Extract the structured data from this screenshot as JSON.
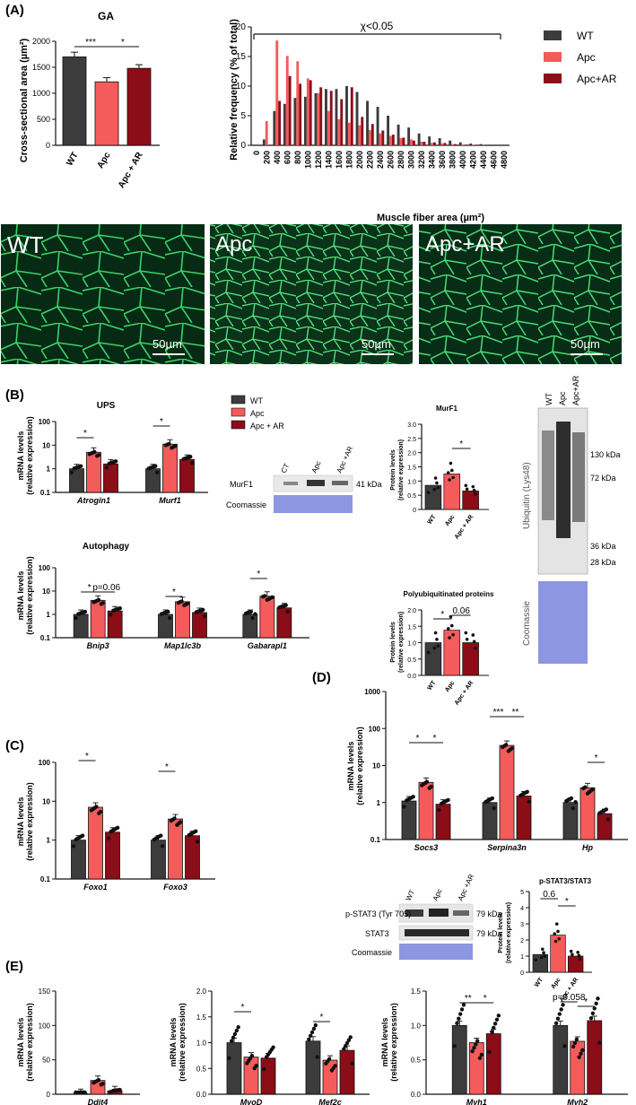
{
  "colors": {
    "wt": "#3c3c3c",
    "apc": "#f45b5b",
    "apcar": "#8b0d17",
    "axis": "#111111"
  },
  "panels": {
    "A": "(A)",
    "B": "(B)",
    "C": "(C)",
    "D": "(D)",
    "E": "(E)"
  },
  "legend": {
    "wt": "WT",
    "apc": "Apc",
    "apcar": "Apc + AR",
    "apcar_compact": "Apc+AR"
  },
  "panelA": {
    "ga_title": "GA",
    "ga_ylabel": "Cross-sectional area (µm²)",
    "ga_chart": {
      "type": "bar",
      "categories": [
        "WT",
        "Apc",
        "Apc + AR"
      ],
      "values": [
        1700,
        1220,
        1480
      ],
      "errors": [
        90,
        80,
        70
      ],
      "ylim": [
        0,
        2000
      ],
      "yticks": [
        0,
        500,
        1000,
        1500,
        2000
      ],
      "sig": [
        {
          "from": 0,
          "to": 1,
          "label": "***"
        },
        {
          "from": 1,
          "to": 2,
          "label": "*"
        }
      ]
    },
    "hist_ylabel": "Relative frequency (% of total)",
    "hist_xlabel": "Muscle fiber area (µm²)",
    "hist_annotation": "χ<0.05",
    "hist_chart": {
      "type": "bar",
      "categories": [
        "0",
        "200",
        "400",
        "600",
        "800",
        "1000",
        "1200",
        "1400",
        "1600",
        "1800",
        "2000",
        "2200",
        "2400",
        "2600",
        "2800",
        "3000",
        "3200",
        "3400",
        "3600",
        "3800",
        "4000",
        "4200",
        "4400",
        "4600",
        "4800"
      ],
      "yticks": [
        0,
        5,
        10,
        15,
        20
      ],
      "ylim": [
        0,
        20
      ],
      "series": [
        {
          "name": "WT",
          "values": [
            0,
            1.0,
            5.8,
            7.0,
            8.0,
            8.2,
            8.8,
            9.5,
            9.5,
            10.0,
            9.0,
            7.5,
            6.5,
            5.0,
            3.5,
            3.0,
            2.0,
            1.5,
            1.2,
            0.8,
            0.5,
            0.3,
            0.2,
            0.1,
            0
          ]
        },
        {
          "name": "Apc",
          "values": [
            0,
            4.1,
            17.7,
            15.1,
            14.2,
            11.3,
            8.8,
            5.8,
            4.4,
            3.8,
            3.4,
            2.6,
            2.0,
            1.6,
            1.2,
            1.0,
            0.6,
            0.4,
            0.3,
            0.2,
            0.1,
            0.1,
            0.05,
            0,
            0
          ]
        },
        {
          "name": "Apc+AR",
          "values": [
            0,
            0,
            7.5,
            11.7,
            10.4,
            11.0,
            9.8,
            9.2,
            7.8,
            9.8,
            4.8,
            3.6,
            2.5,
            1.8,
            1.3,
            0.8,
            0.6,
            0.5,
            0.4,
            0.2,
            0.1,
            0.05,
            0,
            0,
            0
          ]
        }
      ]
    },
    "micro_labels": [
      "WT",
      "Apc",
      "Apc+AR"
    ],
    "scale_bar": "50µm"
  },
  "panelB": {
    "ups_title": "UPS",
    "autophagy_title": "Autophagy",
    "ylabel_1": "mRNA levels",
    "ylabel_2": "(relative expression)",
    "log_ticks": [
      "0.1",
      "1",
      "10",
      "100"
    ],
    "ups_chart": {
      "type": "bar",
      "categories": [
        "Atrogin1",
        "Murf1"
      ],
      "series": [
        {
          "name": "WT",
          "values": [
            1.0,
            1.0
          ]
        },
        {
          "name": "Apc",
          "values": [
            5.0,
            11.0
          ]
        },
        {
          "name": "Apc + AR",
          "values": [
            1.6,
            2.5
          ]
        }
      ],
      "sig": [
        {
          "cat": 0,
          "label": "*"
        },
        {
          "cat": 1,
          "label": "*"
        }
      ]
    },
    "autophagy_chart": {
      "type": "bar",
      "categories": [
        "Bnip3",
        "Map1lc3b",
        "Gabarapl1"
      ],
      "series": [
        {
          "name": "WT",
          "values": [
            1.0,
            1.0,
            1.0
          ]
        },
        {
          "name": "Apc",
          "values": [
            4.0,
            3.5,
            6.0
          ]
        },
        {
          "name": "Apc + AR",
          "values": [
            1.4,
            1.2,
            1.9
          ]
        }
      ],
      "p_label": "p=0.06"
    },
    "blot": {
      "lanes": [
        "CT",
        "Apc",
        "Apc +AR"
      ],
      "murf1": "MurF1",
      "murf1_kda": "41 kDa",
      "coomassie": "Coomassie"
    },
    "murf1_chart": {
      "type": "bar",
      "title": "MurF1",
      "ylabel_1": "Protein levels",
      "ylabel_2": "(relative expression)",
      "categories": [
        "WT",
        "Apc",
        "Apc + AR"
      ],
      "values": [
        0.85,
        1.25,
        0.65
      ],
      "yticks": [
        "0",
        "0.5",
        "1.0",
        "1.5",
        "2.0",
        "2.5",
        "3.0"
      ],
      "ylim": [
        0,
        3
      ]
    },
    "polyub_chart": {
      "type": "bar",
      "title": "Polyubiquitinated proteins",
      "ylabel_1": "Protein levels",
      "ylabel_2": "(relative expression)",
      "categories": [
        "WT",
        "Apc",
        "Apc + AR"
      ],
      "values": [
        1.0,
        1.38,
        1.0
      ],
      "yticks": [
        "0.0",
        "0.5",
        "1.0",
        "1.5",
        "2.0"
      ],
      "ylim": [
        0,
        2
      ],
      "p_label": "0.06"
    },
    "ubiquitin_blot": {
      "lanes": [
        "WT",
        "Apc",
        "Apc+AR"
      ],
      "label": "Ubiquitin (Lys48)",
      "coomassie": "Coomassie",
      "kda": [
        "130 kDa",
        "72 kDa",
        "36 kDa",
        "28 kDa"
      ]
    }
  },
  "panelC": {
    "chart": {
      "type": "bar",
      "categories": [
        "Foxo1",
        "Foxo3"
      ],
      "series": [
        {
          "name": "WT",
          "values": [
            1.0,
            1.0
          ]
        },
        {
          "name": "Apc",
          "values": [
            7.0,
            3.5
          ]
        },
        {
          "name": "Apc + AR",
          "values": [
            1.6,
            1.3
          ]
        }
      ]
    }
  },
  "panelD": {
    "chart": {
      "type": "bar",
      "categories": [
        "Socs3",
        "Serpina3n",
        "Hp"
      ],
      "series": [
        {
          "name": "WT",
          "values": [
            1.1,
            1.0,
            1.0
          ]
        },
        {
          "name": "Apc",
          "values": [
            3.5,
            35.0,
            2.5
          ]
        },
        {
          "name": "Apc + AR",
          "values": [
            0.9,
            1.5,
            0.5
          ]
        }
      ],
      "log_ticks": [
        "0.1",
        "1",
        "10",
        "100",
        "1000"
      ]
    },
    "blot": {
      "lanes": [
        "WT",
        "Apc",
        "Apc +AR"
      ],
      "pstat3": "p-STAT3 (Tyr 705)",
      "stat3": "STAT3",
      "coomassie": "Coomassie",
      "kda": "79 kDa"
    },
    "pstat_chart": {
      "type": "bar",
      "title": "p-STAT3/STAT3",
      "categories": [
        "WT",
        "Apc",
        "Apc + AR"
      ],
      "values": [
        1.1,
        2.3,
        1.0
      ],
      "yticks": [
        "0",
        "1",
        "2",
        "3",
        "4",
        "5"
      ],
      "ylim": [
        0,
        5
      ],
      "p_label": "0.6"
    }
  },
  "panelE": {
    "ddit4_chart": {
      "type": "bar",
      "categories": [
        "Ddit4"
      ],
      "series": [
        {
          "name": "WT",
          "values": [
            1.0
          ]
        },
        {
          "name": "Apc",
          "values": [
            20
          ]
        },
        {
          "name": "Apc + AR",
          "values": [
            5
          ]
        }
      ],
      "yticks": [
        "0",
        "50",
        "100",
        "150"
      ],
      "ylim": [
        0,
        150
      ]
    },
    "myod_chart": {
      "type": "bar",
      "categories": [
        "MyoD",
        "Mef2c"
      ],
      "series": [
        {
          "name": "WT",
          "values": [
            1.0,
            1.03
          ]
        },
        {
          "name": "Apc",
          "values": [
            0.72,
            0.66
          ]
        },
        {
          "name": "Apc + AR",
          "values": [
            0.7,
            0.85
          ]
        }
      ],
      "yticks": [
        "0.0",
        "0.5",
        "1.0",
        "1.5",
        "2.0"
      ],
      "ylim": [
        0,
        2
      ]
    },
    "myh_chart": {
      "type": "bar",
      "categories": [
        "Myh1",
        "Myh2"
      ],
      "series": [
        {
          "name": "WT",
          "values": [
            1.0,
            1.0
          ]
        },
        {
          "name": "Apc",
          "values": [
            0.75,
            0.77
          ]
        },
        {
          "name": "Apc + AR",
          "values": [
            0.88,
            1.07
          ]
        }
      ],
      "yticks": [
        "0.0",
        "0.5",
        "1.0",
        "1.5"
      ],
      "ylim": [
        0,
        1.5
      ],
      "p_label": "p=0.058"
    }
  }
}
